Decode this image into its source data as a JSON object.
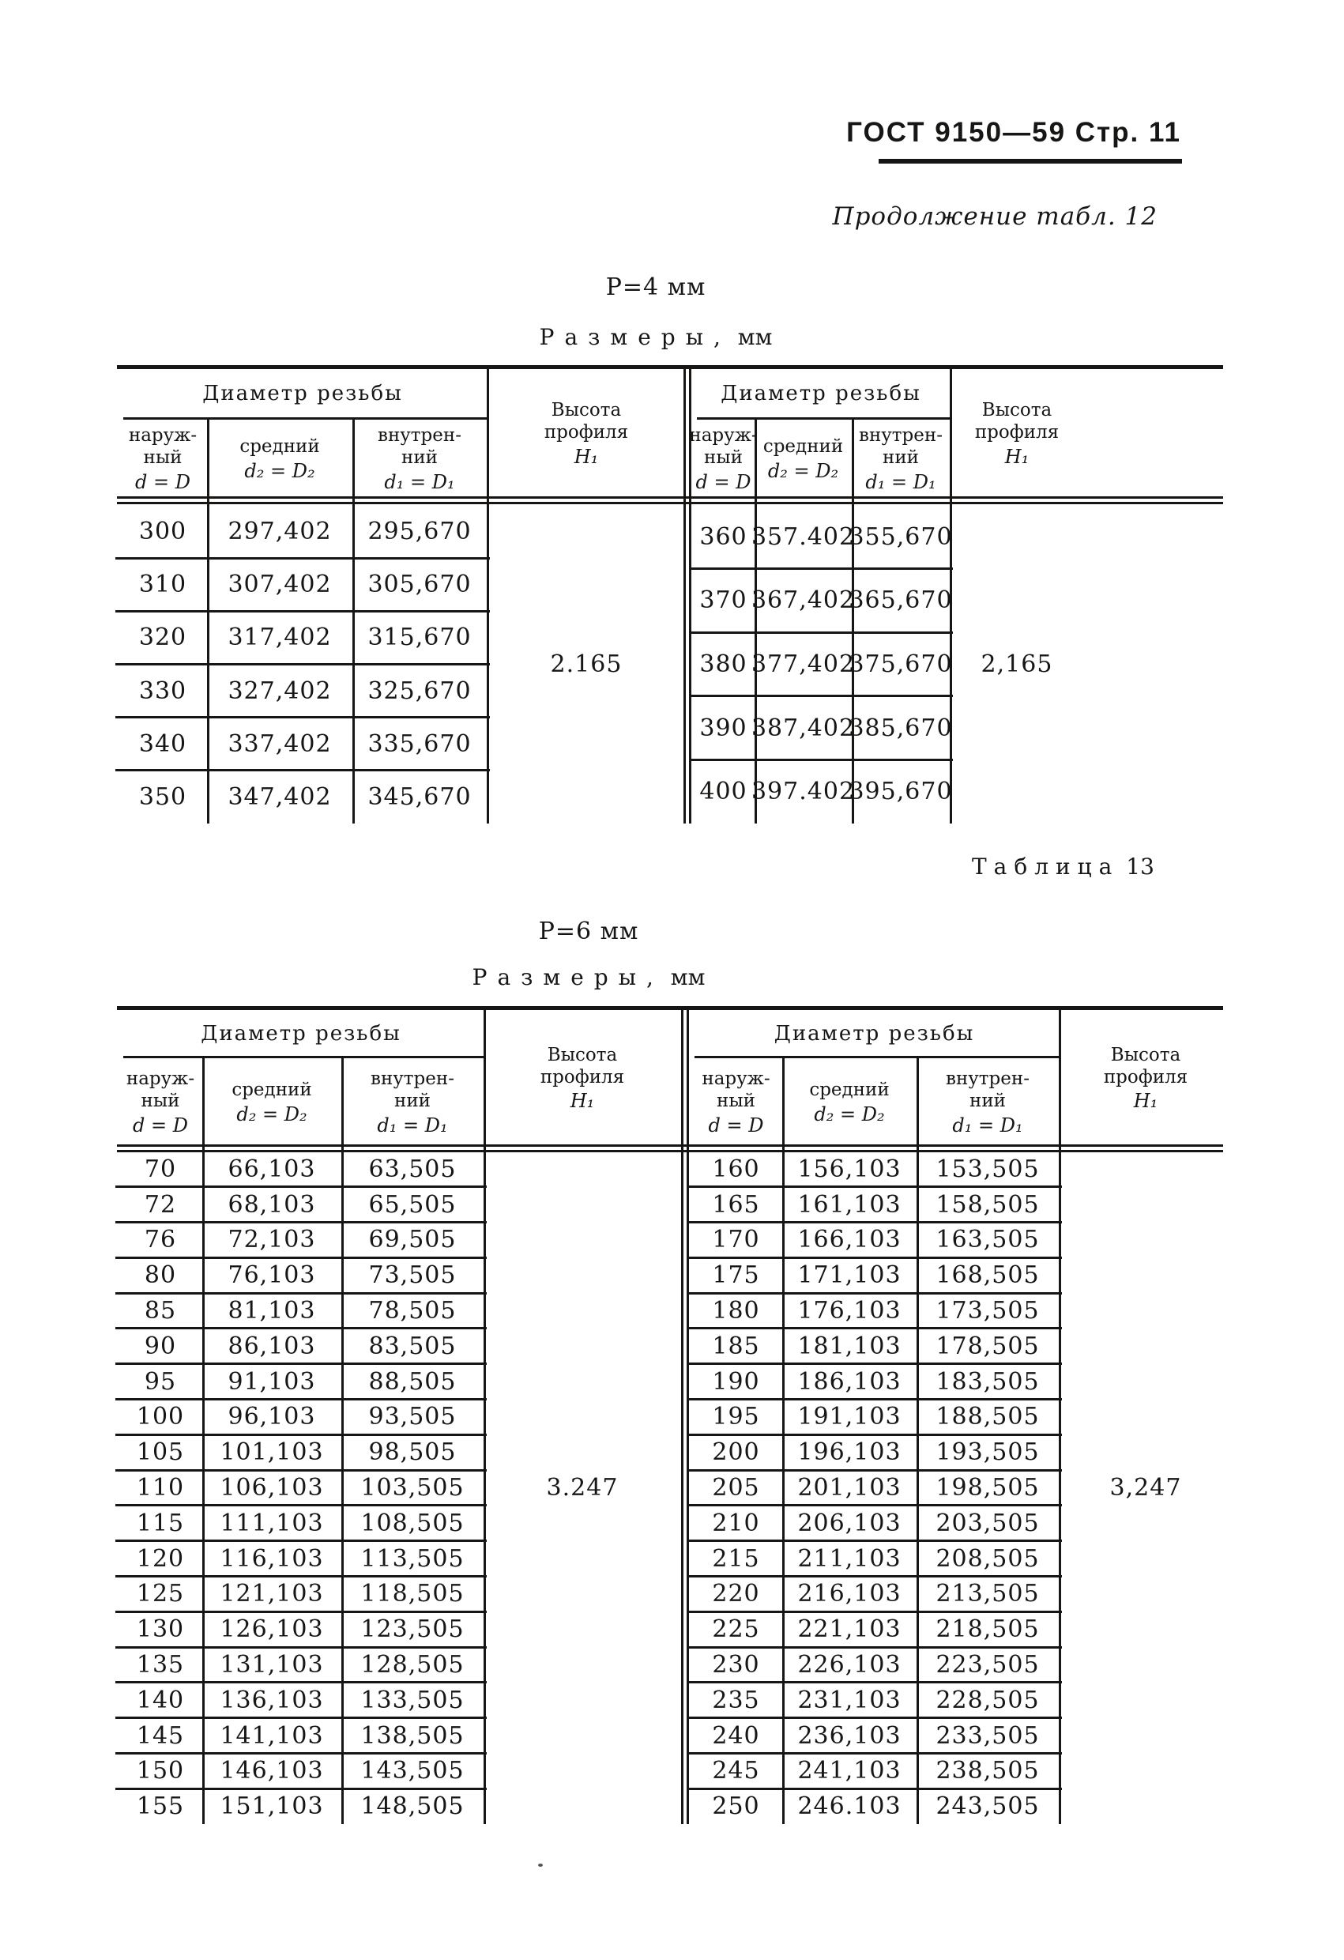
{
  "page": {
    "header": "ГОСТ 9150—59 Стр. 11",
    "continuation": "Продолжение табл. 12"
  },
  "table_header": {
    "group": "Диаметр резьбы",
    "columns": [
      {
        "name": "наруж-\nный",
        "formula": "d = D"
      },
      {
        "name": "средний",
        "formula": "d₂ = D₂"
      },
      {
        "name": "внутрен-\nний",
        "formula": "d₁ = D₁"
      }
    ],
    "height": {
      "name": "Высота\nпрофиля",
      "formula": "H₁"
    }
  },
  "tables": [
    {
      "caption_spaced": "",
      "caption_number": "",
      "pitch": "Р=4 мм",
      "sizes_spaced": "Размеры,",
      "sizes_unit": "мм",
      "halves": [
        {
          "height_value": "2.165",
          "rows": [
            [
              "300",
              "297,402",
              "295,670"
            ],
            [
              "310",
              "307,402",
              "305,670"
            ],
            [
              "320",
              "317,402",
              "315,670"
            ],
            [
              "330",
              "327,402",
              "325,670"
            ],
            [
              "340",
              "337,402",
              "335,670"
            ],
            [
              "350",
              "347,402",
              "345,670"
            ]
          ]
        },
        {
          "height_value": "2,165",
          "rows": [
            [
              "360",
              "357.402",
              "355,670"
            ],
            [
              "370",
              "367,402",
              "365,670"
            ],
            [
              "380",
              "377,402",
              "375,670"
            ],
            [
              "390",
              "387,402",
              "385,670"
            ],
            [
              "400",
              "397.402",
              "395,670"
            ]
          ]
        }
      ]
    },
    {
      "caption_spaced": "Таблица",
      "caption_number": "13",
      "pitch": "Р=6 мм",
      "sizes_spaced": "Размеры,",
      "sizes_unit": "мм",
      "halves": [
        {
          "height_value": "3.247",
          "rows": [
            [
              "70",
              "66,103",
              "63,505"
            ],
            [
              "72",
              "68,103",
              "65,505"
            ],
            [
              "76",
              "72,103",
              "69,505"
            ],
            [
              "80",
              "76,103",
              "73,505"
            ],
            [
              "85",
              "81,103",
              "78,505"
            ],
            [
              "90",
              "86,103",
              "83,505"
            ],
            [
              "95",
              "91,103",
              "88,505"
            ],
            [
              "100",
              "96,103",
              "93,505"
            ],
            [
              "105",
              "101,103",
              "98,505"
            ],
            [
              "110",
              "106,103",
              "103,505"
            ],
            [
              "115",
              "111,103",
              "108,505"
            ],
            [
              "120",
              "116,103",
              "113,505"
            ],
            [
              "125",
              "121,103",
              "118,505"
            ],
            [
              "130",
              "126,103",
              "123,505"
            ],
            [
              "135",
              "131,103",
              "128,505"
            ],
            [
              "140",
              "136,103",
              "133,505"
            ],
            [
              "145",
              "141,103",
              "138,505"
            ],
            [
              "150",
              "146,103",
              "143,505"
            ],
            [
              "155",
              "151,103",
              "148,505"
            ]
          ]
        },
        {
          "height_value": "3,247",
          "rows": [
            [
              "160",
              "156,103",
              "153,505"
            ],
            [
              "165",
              "161,103",
              "158,505"
            ],
            [
              "170",
              "166,103",
              "163,505"
            ],
            [
              "175",
              "171,103",
              "168,505"
            ],
            [
              "180",
              "176,103",
              "173,505"
            ],
            [
              "185",
              "181,103",
              "178,505"
            ],
            [
              "190",
              "186,103",
              "183,505"
            ],
            [
              "195",
              "191,103",
              "188,505"
            ],
            [
              "200",
              "196,103",
              "193,505"
            ],
            [
              "205",
              "201,103",
              "198,505"
            ],
            [
              "210",
              "206,103",
              "203,505"
            ],
            [
              "215",
              "211,103",
              "208,505"
            ],
            [
              "220",
              "216,103",
              "213,505"
            ],
            [
              "225",
              "221,103",
              "218,505"
            ],
            [
              "230",
              "226,103",
              "223,505"
            ],
            [
              "235",
              "231,103",
              "228,505"
            ],
            [
              "240",
              "236,103",
              "233,505"
            ],
            [
              "245",
              "241,103",
              "238,505"
            ],
            [
              "250",
              "246.103",
              "243,505"
            ]
          ]
        }
      ]
    }
  ]
}
